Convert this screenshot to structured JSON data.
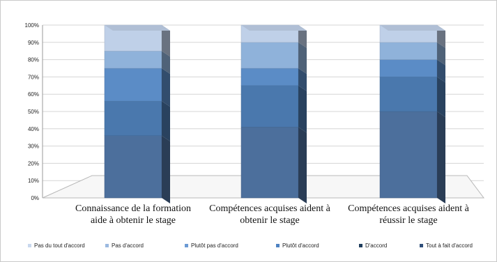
{
  "chart_data": {
    "type": "bar",
    "stacked": true,
    "orientation": "vertical",
    "grid": true,
    "ylim": [
      0,
      100
    ],
    "y_ticks": [
      "0%",
      "10%",
      "20%",
      "30%",
      "40%",
      "50%",
      "60%",
      "70%",
      "80%",
      "90%",
      "100%"
    ],
    "categories": [
      [
        "Connaissance de la formation",
        "aide à obtenir le stage"
      ],
      [
        "Compétences acquises aident à",
        "obtenir le stage"
      ],
      [
        "Compétences acquises aident à",
        "réussir le stage"
      ]
    ],
    "series": [
      {
        "name": "Tout à fait d'accord",
        "color": "#4c6f9c",
        "values": [
          36,
          41,
          50
        ]
      },
      {
        "name": "D'accord",
        "color": "#4a78ad",
        "values": [
          20,
          24,
          20
        ]
      },
      {
        "name": "Plutôt d'accord",
        "color": "#5b8cc6",
        "values": [
          19,
          10,
          10
        ]
      },
      {
        "name": "Plutôt pas d'accord",
        "color": "#6e9ed2",
        "values": [
          0,
          0,
          0
        ]
      },
      {
        "name": "Pas d'accord",
        "color": "#8fb2da",
        "values": [
          10,
          15,
          10
        ]
      },
      {
        "name": "Pas du tout d'accord",
        "color": "#bfd0e8",
        "values": [
          15,
          10,
          10
        ]
      }
    ],
    "legend": {
      "placement": "bottom",
      "items": [
        "Pas du tout d'accord",
        "Pas d'accord",
        "Plutôt pas d'accord",
        "Plutôt d'accord",
        "D'accord",
        "Tout à fait d'accord"
      ],
      "colors": [
        "#c9d8ee",
        "#9bb9e0",
        "#6b9ad4",
        "#4e82c2",
        "#1f3d5d",
        "#2f4f7a"
      ]
    }
  }
}
